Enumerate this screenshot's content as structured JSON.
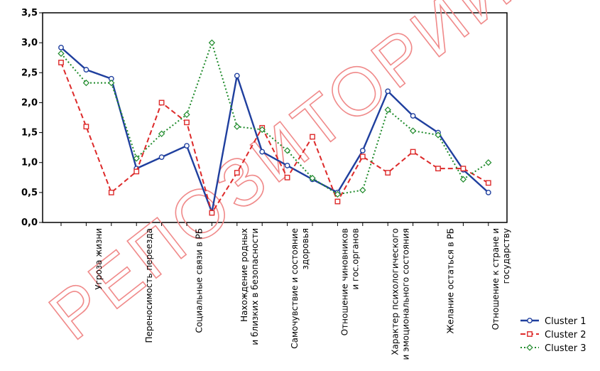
{
  "chart_data": {
    "type": "line",
    "title": "",
    "xlabel": "",
    "ylabel": "",
    "ylim": [
      0,
      3.5
    ],
    "yticks": [
      "0,0",
      "0,5",
      "1,0",
      "1,5",
      "2,0",
      "2,5",
      "3,0",
      "3,5"
    ],
    "grid": false,
    "legend_position": "bottom-right",
    "category_labels": [
      {
        "at": 1.5,
        "lines": [
          "Угроза жизни"
        ]
      },
      {
        "at": 3.5,
        "lines": [
          "Переносимость переезда"
        ]
      },
      {
        "at": 5.5,
        "lines": [
          "Социальные связи в РБ"
        ]
      },
      {
        "at": 7.5,
        "lines": [
          "Нахождение родных",
          "и близких в безопасности"
        ]
      },
      {
        "at": 9.5,
        "lines": [
          "Самочувствие и состояние",
          "здоровья"
        ]
      },
      {
        "at": 11.5,
        "lines": [
          "Отношение чиновников",
          "и гос.органов"
        ]
      },
      {
        "at": 13.5,
        "lines": [
          "Характер психологического",
          "и эмоционального состояния"
        ]
      },
      {
        "at": 15.5,
        "lines": [
          "Желание остаться в РБ"
        ]
      },
      {
        "at": 17.5,
        "lines": [
          "Отношение к стране и",
          "государству"
        ]
      }
    ],
    "series": [
      {
        "name": "Cluster 1",
        "color": "#1f3f9e",
        "dash": "solid",
        "marker": "circle",
        "values": [
          2.92,
          2.55,
          2.4,
          0.9,
          1.09,
          1.28,
          0.17,
          2.45,
          1.18,
          0.95,
          0.72,
          0.5,
          1.2,
          2.19,
          1.78,
          1.5,
          0.88,
          0.5
        ]
      },
      {
        "name": "Cluster 2",
        "color": "#dd2a2a",
        "dash": "dashed",
        "marker": "square",
        "values": [
          2.67,
          1.6,
          0.5,
          0.85,
          2.0,
          1.67,
          0.16,
          0.83,
          1.58,
          0.75,
          1.43,
          0.35,
          1.1,
          0.83,
          1.18,
          0.9,
          0.9,
          0.66
        ]
      },
      {
        "name": "Cluster 3",
        "color": "#1e8a2a",
        "dash": "dotted",
        "marker": "diamond",
        "values": [
          2.82,
          2.33,
          2.33,
          1.07,
          1.48,
          1.8,
          3.0,
          1.6,
          1.55,
          1.2,
          0.74,
          0.47,
          0.54,
          1.88,
          1.53,
          1.46,
          0.72,
          1.0
        ]
      }
    ]
  },
  "watermark": "РЕПОЗИТОРИЙ"
}
